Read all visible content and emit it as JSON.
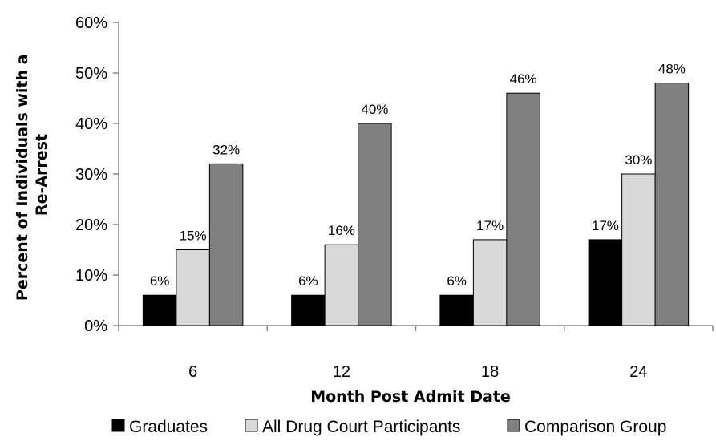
{
  "chart_data": {
    "type": "bar",
    "categories": [
      "6",
      "12",
      "18",
      "24"
    ],
    "series": [
      {
        "name": "Graduates",
        "values": [
          6,
          6,
          6,
          17
        ],
        "labels": [
          "6%",
          "6%",
          "6%",
          "17%"
        ],
        "color": "#000000"
      },
      {
        "name": "All Drug Court Participants",
        "values": [
          15,
          16,
          17,
          30
        ],
        "labels": [
          "15%",
          "16%",
          "17%",
          "30%"
        ],
        "color": "#d9d9d9"
      },
      {
        "name": "Comparison Group",
        "values": [
          32,
          40,
          46,
          48
        ],
        "labels": [
          "32%",
          "40%",
          "46%",
          "48%"
        ],
        "color": "#808080"
      }
    ],
    "xlabel": "Month Post Admit Date",
    "ylabel_lines": [
      "Percent of Individuals with a",
      "Re-Arrest"
    ],
    "ylim": [
      0,
      60
    ],
    "yticks": [
      0,
      10,
      20,
      30,
      40,
      50,
      60
    ],
    "ytick_labels": [
      "0%",
      "10%",
      "20%",
      "30%",
      "40%",
      "50%",
      "60%"
    ],
    "grid": false,
    "legend_position": "bottom"
  }
}
